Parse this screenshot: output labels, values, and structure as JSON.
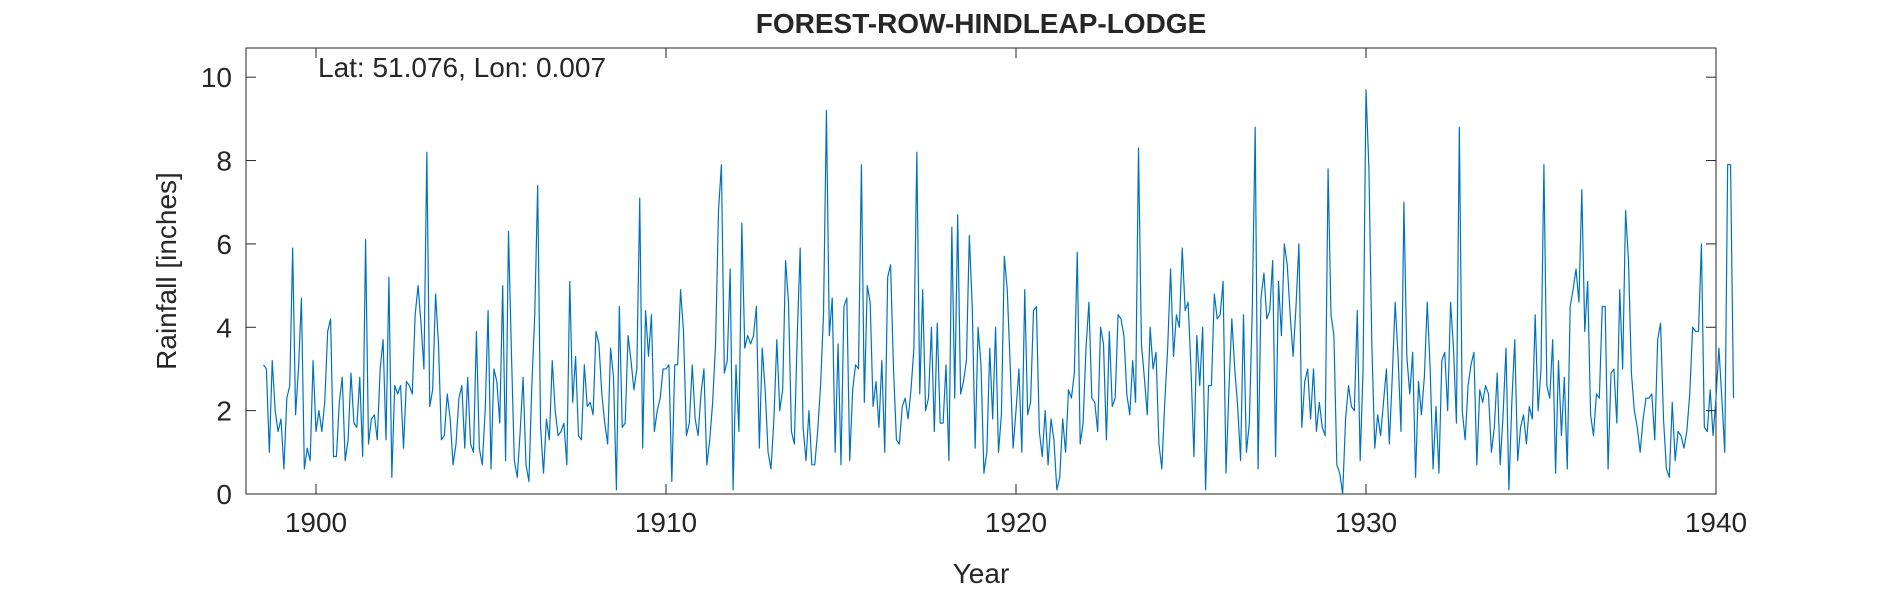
{
  "chart_data": {
    "type": "line",
    "title": "FOREST-ROW-HINDLEAP-LODGE",
    "annotation": "Lat: 51.076, Lon: 0.007",
    "xlabel": "Year",
    "ylabel": "Rainfall [inches]",
    "xlim": [
      1898.0,
      1940.0
    ],
    "ylim": [
      0,
      10.7
    ],
    "xticks": [
      1900,
      1910,
      1920,
      1930,
      1940
    ],
    "xtick_labels": [
      "1900",
      "1910",
      "1920",
      "1930",
      "1940"
    ],
    "yticks": [
      0,
      2,
      4,
      6,
      8,
      10
    ],
    "ytick_labels": [
      "0",
      "2",
      "4",
      "6",
      "8",
      "10"
    ],
    "grid": false,
    "line_color": "#0072bd",
    "axis_color": "#262626",
    "x_start": 1898.5,
    "x_step": 0.0833333,
    "series": [
      {
        "values": [
          3.1,
          3.0,
          1.0,
          3.2,
          2.0,
          1.5,
          1.8,
          0.6,
          2.3,
          2.6,
          5.9,
          1.9,
          3.0,
          4.7,
          0.6,
          1.1,
          0.8,
          3.2,
          1.5,
          2.0,
          1.5,
          2.2,
          3.9,
          4.2,
          0.9,
          0.9,
          2.2,
          2.8,
          0.8,
          1.3,
          2.9,
          1.7,
          1.6,
          2.8,
          0.9,
          6.1,
          1.2,
          1.8,
          1.9,
          1.3,
          3.0,
          3.7,
          1.3,
          5.2,
          0.4,
          2.6,
          2.4,
          2.6,
          1.1,
          2.7,
          2.6,
          2.4,
          4.3,
          5.0,
          4.1,
          3.0,
          8.2,
          2.1,
          2.5,
          4.8,
          3.6,
          1.3,
          1.4,
          2.4,
          1.8,
          0.7,
          1.2,
          2.3,
          2.6,
          1.1,
          2.8,
          1.2,
          1.0,
          3.9,
          1.1,
          0.7,
          2.0,
          4.4,
          0.6,
          3.0,
          2.7,
          1.7,
          5.0,
          0.8,
          6.3,
          3.4,
          0.8,
          0.4,
          1.5,
          2.8,
          0.7,
          0.3,
          2.6,
          4.3,
          7.4,
          1.6,
          0.5,
          1.8,
          1.3,
          3.2,
          2.0,
          1.4,
          1.5,
          1.7,
          0.7,
          5.1,
          2.2,
          3.3,
          1.4,
          1.3,
          3.1,
          2.1,
          2.2,
          1.9,
          3.9,
          3.6,
          2.4,
          1.7,
          1.2,
          3.5,
          2.8,
          0.1,
          4.5,
          1.6,
          1.7,
          3.8,
          3.2,
          2.5,
          3.0,
          7.1,
          1.1,
          4.4,
          3.3,
          4.3,
          1.5,
          2.0,
          2.3,
          3.0,
          3.0,
          3.1,
          0.3,
          3.1,
          3.1,
          4.9,
          3.9,
          1.4,
          1.7,
          3.1,
          1.8,
          1.4,
          2.4,
          3.0,
          0.7,
          1.3,
          2.2,
          3.6,
          6.8,
          7.9,
          2.9,
          3.2,
          5.4,
          0.1,
          3.1,
          1.5,
          6.5,
          3.5,
          3.8,
          3.6,
          3.8,
          4.5,
          1.1,
          3.5,
          2.5,
          1.0,
          0.6,
          1.8,
          3.7,
          2.0,
          2.5,
          5.6,
          4.6,
          1.5,
          1.2,
          3.8,
          5.9,
          1.6,
          0.8,
          2.0,
          0.7,
          0.7,
          1.5,
          2.6,
          4.3,
          9.2,
          3.8,
          4.7,
          1.0,
          3.6,
          0.7,
          4.5,
          4.7,
          0.8,
          2.5,
          3.1,
          3.0,
          7.9,
          2.2,
          5.0,
          4.6,
          2.1,
          2.7,
          1.6,
          3.2,
          1.0,
          5.2,
          5.5,
          3.0,
          1.3,
          1.2,
          2.1,
          2.3,
          1.8,
          2.5,
          3.5,
          8.2,
          2.4,
          4.9,
          2.0,
          2.3,
          4.0,
          1.5,
          4.1,
          1.7,
          1.7,
          3.1,
          0.8,
          6.4,
          2.3,
          6.7,
          2.4,
          2.7,
          3.2,
          6.2,
          4.5,
          1.1,
          4.0,
          3.1,
          0.5,
          1.0,
          3.5,
          1.8,
          4.0,
          1.0,
          1.9,
          5.7,
          4.9,
          3.1,
          1.1,
          2.0,
          3.0,
          1.0,
          4.9,
          1.9,
          2.2,
          4.4,
          4.5,
          1.5,
          0.9,
          2.0,
          0.7,
          1.8,
          1.3,
          0.1,
          0.4,
          1.8,
          1.0,
          2.5,
          2.3,
          2.9,
          5.8,
          1.2,
          1.7,
          3.5,
          4.6,
          2.3,
          2.2,
          1.5,
          4.0,
          3.6,
          1.3,
          3.9,
          2.1,
          2.3,
          4.3,
          4.2,
          3.8,
          2.4,
          1.9,
          3.2,
          2.2,
          8.3,
          3.6,
          2.8,
          1.9,
          4.0,
          3.0,
          3.4,
          1.2,
          0.6,
          2.2,
          3.5,
          5.4,
          3.3,
          4.3,
          4.0,
          5.9,
          4.4,
          4.6,
          3.0,
          0.9,
          3.8,
          2.6,
          4.0,
          0.1,
          2.6,
          2.6,
          4.8,
          4.2,
          4.3,
          5.1,
          0.5,
          2.5,
          4.2,
          3.0,
          2.1,
          0.8,
          4.3,
          1.0,
          1.7,
          4.4,
          8.8,
          0.6,
          4.7,
          5.3,
          4.2,
          4.4,
          5.6,
          0.9,
          5.1,
          3.8,
          6.0,
          5.5,
          4.3,
          3.3,
          4.5,
          6.0,
          1.6,
          2.7,
          3.0,
          1.8,
          3.0,
          1.5,
          2.2,
          1.6,
          1.4,
          7.8,
          4.3,
          3.8,
          0.7,
          0.5,
          0.0,
          1.8,
          2.6,
          2.1,
          2.0,
          4.4,
          0.8,
          3.0,
          9.7,
          7.8,
          3.6,
          1.1,
          1.9,
          1.4,
          2.2,
          3.0,
          1.2,
          2.8,
          4.6,
          3.3,
          1.5,
          7.0,
          3.3,
          2.4,
          3.4,
          0.4,
          2.7,
          1.9,
          2.8,
          4.6,
          3.0,
          0.6,
          2.1,
          0.5,
          3.2,
          3.4,
          2.0,
          4.6,
          3.5,
          1.7,
          8.8,
          2.0,
          1.3,
          2.6,
          3.1,
          3.4,
          0.7,
          2.5,
          2.2,
          2.6,
          2.4,
          1.0,
          1.6,
          2.9,
          0.7,
          1.9,
          3.5,
          0.1,
          2.2,
          3.7,
          0.8,
          1.6,
          1.9,
          1.2,
          2.1,
          1.8,
          4.3,
          2.0,
          3.0,
          7.9,
          2.6,
          2.3,
          3.7,
          0.5,
          3.2,
          1.4,
          2.8,
          0.6,
          4.5,
          4.9,
          5.4,
          4.6,
          7.3,
          3.9,
          5.1,
          1.9,
          1.4,
          2.4,
          2.3,
          4.5,
          4.5,
          0.6,
          2.9,
          3.0,
          1.7,
          4.9,
          3.0,
          6.8,
          5.6,
          2.9,
          2.0,
          1.6,
          1.0,
          1.8,
          2.3,
          2.3,
          2.4,
          1.3,
          3.7,
          4.1,
          1.8,
          0.6,
          0.4,
          2.2,
          0.8,
          1.5,
          1.4,
          1.1,
          1.5,
          2.4,
          4.0,
          3.9,
          3.9,
          6.0,
          1.6,
          1.5,
          2.5,
          1.4,
          2.3,
          3.5,
          2.3,
          1.0,
          7.9,
          7.9,
          2.3
        ]
      }
    ]
  }
}
